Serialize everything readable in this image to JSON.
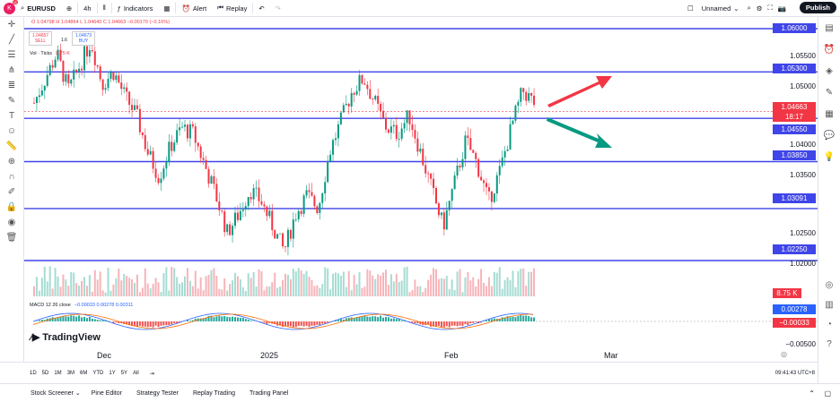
{
  "header": {
    "symbol": "EURUSD",
    "interval": "4h",
    "indicators": "Indicators",
    "alert": "Alert",
    "replay": "Replay",
    "layout_name": "Unnamed",
    "publish": "Publish",
    "avatar_letter": "K",
    "avatar_badge": "11"
  },
  "legend": {
    "ohlc": "O 1.04798 H 1.04864 L 1.04640 C 1.04663 −0.00170 (−0.16%)",
    "sell_price": "1.04657",
    "sell_label": "SELL",
    "spread": "1.6",
    "buy_price": "1.04673",
    "buy_label": "BUY",
    "vol_text": "Vol · Ticks",
    "vol_value": "8.75 K"
  },
  "price_axis": {
    "ticks": [
      "1.05500",
      "1.05000",
      "1.04000",
      "1.03500",
      "1.02500",
      "1.02000"
    ],
    "levels": [
      "1.06000",
      "1.05300",
      "1.04550",
      "1.03850",
      "1.03091",
      "1.02250"
    ],
    "current_price": "1.04663",
    "countdown": "18:17",
    "volume_label": "8.75 K",
    "macd_value": "0.00278",
    "signal_value": "−0.00033",
    "macd_tick": "−0.00500"
  },
  "macd": {
    "label": "MACD 12 26 close",
    "values": "−0.00033  0.00278  0.00311"
  },
  "x_axis": {
    "labels": [
      "Dec",
      "2025",
      "Feb",
      "Mar"
    ]
  },
  "branding": {
    "logo_text": "TradingView"
  },
  "ranges": [
    "1D",
    "5D",
    "1M",
    "3M",
    "6M",
    "YTD",
    "1Y",
    "5Y",
    "All"
  ],
  "clock": "09:41:43 UTC+8",
  "footer_tabs": [
    "Stock Screener",
    "Pine Editor",
    "Strategy Tester",
    "Replay Trading",
    "Trading Panel"
  ],
  "colors": {
    "level_line": "#3f45e8",
    "up": "#089981",
    "down": "#f23645",
    "arrow_up": "#f23645",
    "arrow_down": "#089981"
  }
}
